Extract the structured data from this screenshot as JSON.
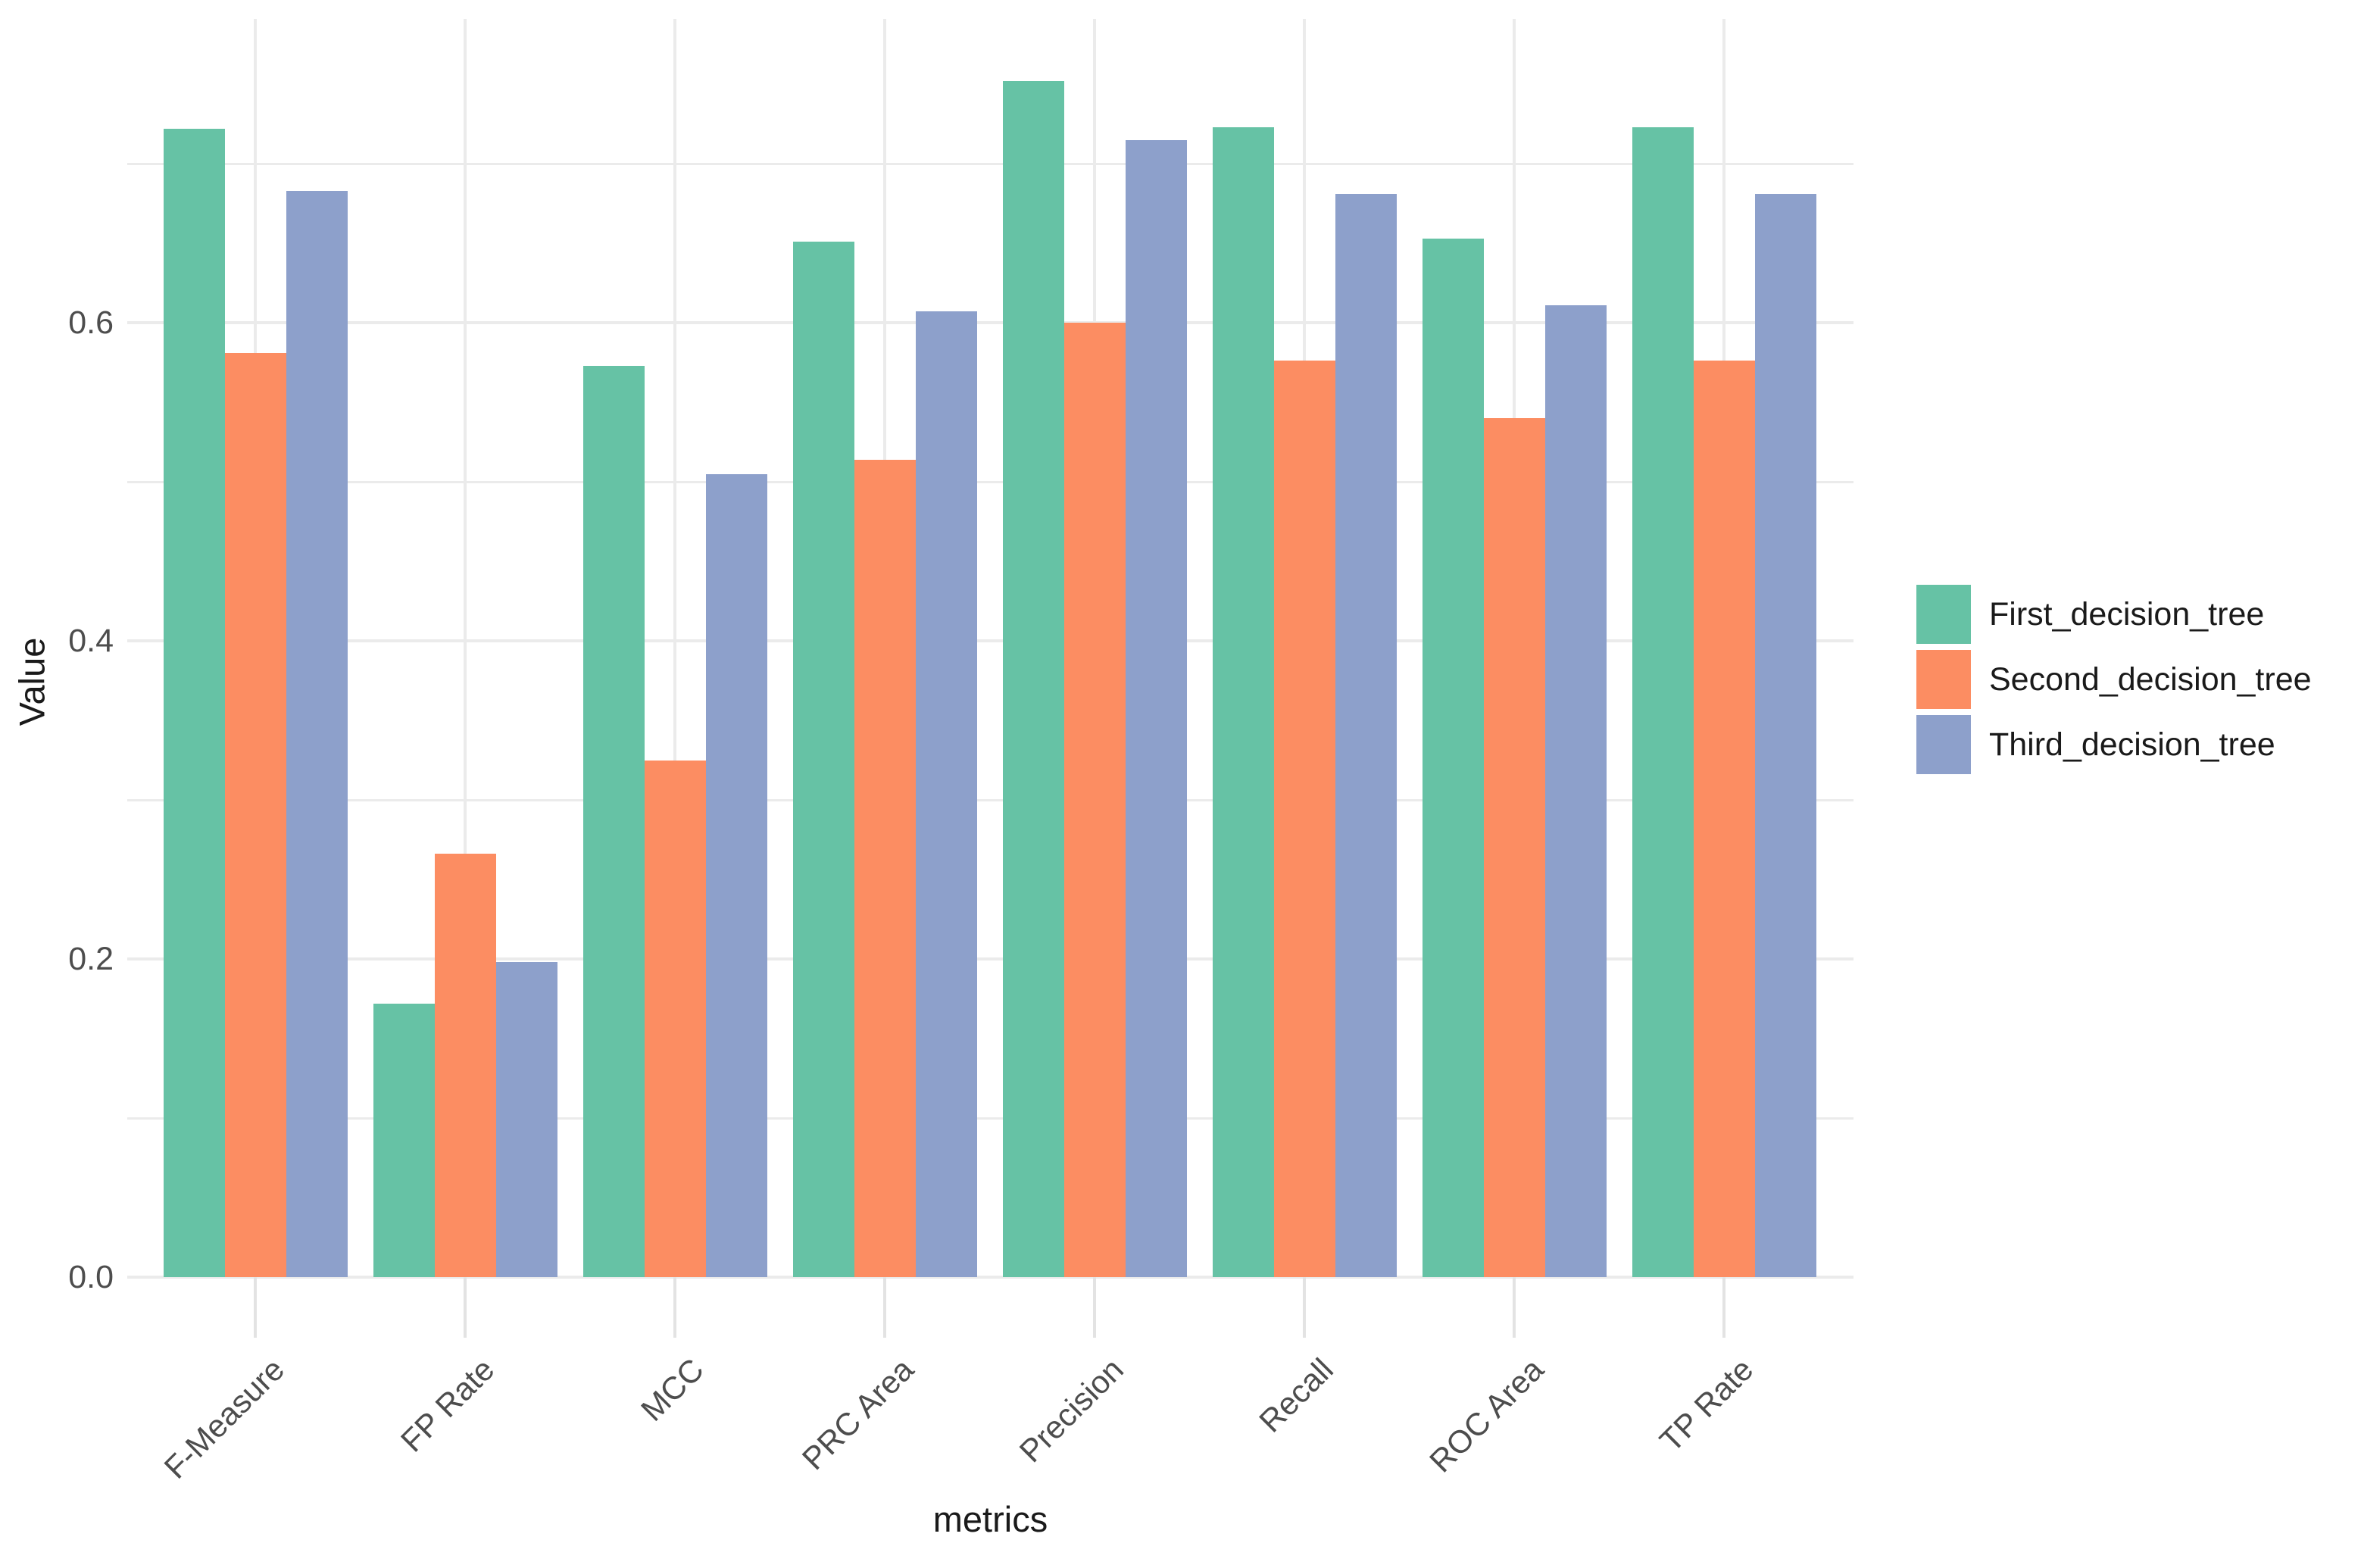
{
  "chart_data": {
    "type": "bar",
    "title": "",
    "xlabel": "metrics",
    "ylabel": "Value",
    "categories": [
      "F-Measure",
      "FP Rate",
      "MCC",
      "PRC Area",
      "Precision",
      "Recall",
      "ROC Area",
      "TP Rate"
    ],
    "series": [
      {
        "name": "First_decision_tree",
        "color": "#66C2A5",
        "values": [
          0.722,
          0.172,
          0.573,
          0.651,
          0.752,
          0.723,
          0.653,
          0.723
        ]
      },
      {
        "name": "Second_decision_tree",
        "color": "#FC8D62",
        "values": [
          0.581,
          0.266,
          0.325,
          0.514,
          0.6,
          0.576,
          0.54,
          0.576
        ]
      },
      {
        "name": "Third_decision_tree",
        "color": "#8DA0CB",
        "values": [
          0.683,
          0.198,
          0.505,
          0.607,
          0.715,
          0.681,
          0.611,
          0.681
        ]
      }
    ],
    "ylim": [
      0,
      0.791
    ],
    "yticks": [
      0.0,
      0.2,
      0.4,
      0.6
    ],
    "ytick_labels": [
      "0.0",
      "0.2",
      "0.4",
      "0.6"
    ],
    "minor_grid_step": 0.1,
    "grid": "horizontal-and-category-vertical",
    "legend_position": "right"
  },
  "colors": {
    "background": "#ffffff",
    "gridline": "#ebebeb",
    "axis_tick": "#e3e3e3",
    "axis_text": "#4d4d4d",
    "title_text": "#1a1a1a"
  }
}
